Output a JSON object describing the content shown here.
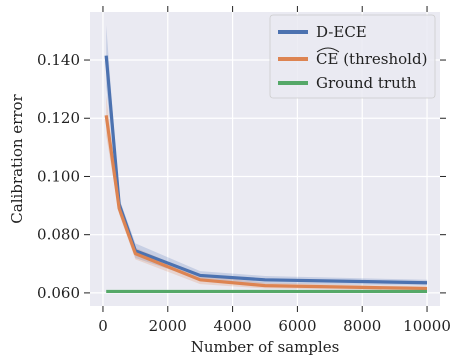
{
  "chart_data": {
    "type": "line",
    "xlabel": "Number of samples",
    "ylabel": "Calibration error",
    "xlim": [
      -400,
      10400
    ],
    "ylim": [
      0.0555,
      0.1565
    ],
    "xticks": [
      0,
      2000,
      4000,
      6000,
      8000,
      10000
    ],
    "xtick_labels": [
      "0",
      "2000",
      "4000",
      "6000",
      "8000",
      "10000"
    ],
    "yticks": [
      0.06,
      0.08,
      0.1,
      0.12,
      0.14
    ],
    "ytick_labels": [
      "0.060",
      "0.080",
      "0.100",
      "0.120",
      "0.140"
    ],
    "grid": true,
    "legend_position": "top-right",
    "x": [
      100,
      500,
      1000,
      3000,
      5000,
      10000
    ],
    "series": [
      {
        "name": "D-ECE",
        "color": "#4c72b0",
        "values": [
          0.1415,
          0.0905,
          0.0745,
          0.066,
          0.0645,
          0.0635
        ],
        "band_lower": [
          0.131,
          0.0885,
          0.072,
          0.0645,
          0.0632,
          0.0625
        ],
        "band_upper": [
          0.152,
          0.0925,
          0.077,
          0.0675,
          0.0658,
          0.0645
        ]
      },
      {
        "name": "CE (threshold)",
        "label_main": "CE",
        "label_suffix": " (threshold)",
        "color": "#dd8452",
        "values": [
          0.121,
          0.089,
          0.0735,
          0.0645,
          0.0625,
          0.0615
        ],
        "band_lower": [
          0.114,
          0.087,
          0.0715,
          0.063,
          0.0615,
          0.0608
        ],
        "band_upper": [
          0.128,
          0.091,
          0.0755,
          0.066,
          0.0635,
          0.0622
        ]
      },
      {
        "name": "Ground truth",
        "color": "#55a868",
        "values": [
          0.0605,
          0.0605,
          0.0605,
          0.0605,
          0.0605,
          0.0605
        ]
      }
    ]
  }
}
